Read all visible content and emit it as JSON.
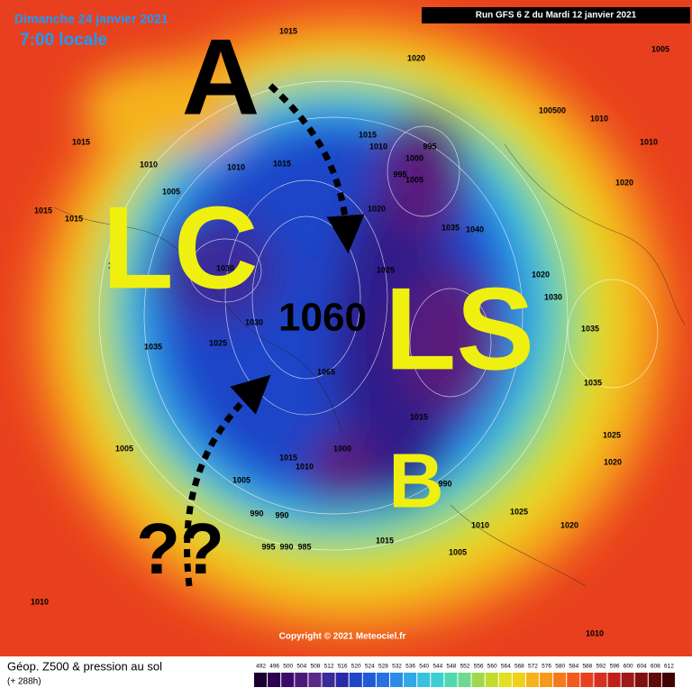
{
  "header": {
    "date": "Dimanche 24 janvier 2021",
    "time": "7:00 locale",
    "run": "Run GFS 6 Z du Mardi 12 janvier 2021"
  },
  "annotations": [
    "A",
    "LC",
    "LS",
    "B",
    "1060",
    "??"
  ],
  "pressure_labels": [
    "1015",
    "1020",
    "1005",
    "1015",
    "1010",
    "1005",
    "1010",
    "1015",
    "1015",
    "1010",
    "995",
    "1000",
    "995",
    "1005",
    "1020",
    "1035",
    "1040",
    "1015",
    "1015",
    "1040",
    "1030",
    "1025",
    "1020",
    "1030",
    "1025",
    "1030",
    "1035",
    "1065",
    "1035",
    "1015",
    "1000",
    "1005",
    "1015",
    "1010",
    "1005",
    "990",
    "1025",
    "1010",
    "990",
    "990",
    "1015",
    "1005",
    "1020",
    "1010",
    "1010",
    "1010",
    "1020",
    "1025",
    "1020",
    "1035",
    "100500",
    "1010",
    "995",
    "990",
    "985"
  ],
  "copyright": "Copyright © 2021 Meteociel.fr",
  "footer": {
    "title": "Géop. Z500 & pression au sol",
    "lead": "(+ 288h)"
  },
  "legend": {
    "scale": [
      492,
      496,
      500,
      504,
      508,
      512,
      516,
      520,
      524,
      528,
      532,
      536,
      540,
      544,
      548,
      552,
      556,
      560,
      564,
      568,
      572,
      576,
      580,
      584,
      588,
      592,
      596,
      600,
      604,
      608,
      612
    ]
  }
}
